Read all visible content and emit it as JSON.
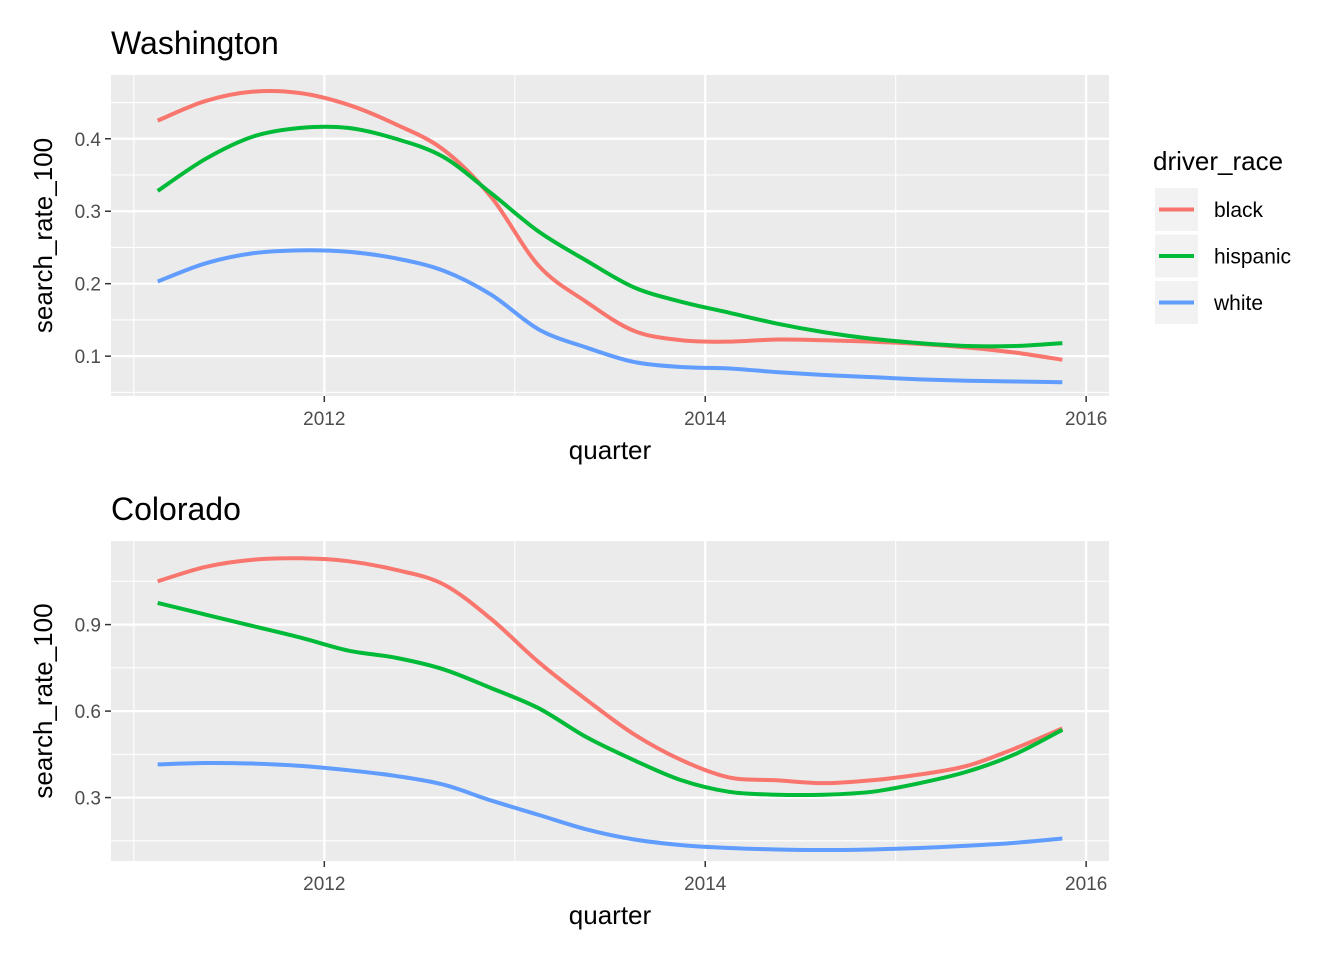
{
  "legend": {
    "title": "driver_race",
    "items": [
      {
        "label": "black",
        "color": "#F8766D"
      },
      {
        "label": "hispanic",
        "color": "#00BA38"
      },
      {
        "label": "white",
        "color": "#619CFF"
      }
    ]
  },
  "colors": {
    "panel_background": "#EBEBEB",
    "grid_major": "#FFFFFF",
    "black": "#F8766D",
    "hispanic": "#00BA38",
    "white": "#619CFF"
  },
  "chart_data": [
    {
      "type": "line",
      "title": "Washington",
      "xlabel": "quarter",
      "ylabel": "search_rate_100",
      "xlim": [
        2010.88,
        2016.12
      ],
      "ylim": [
        0.045,
        0.488
      ],
      "x_ticks": [
        2012,
        2014,
        2016
      ],
      "x_tick_labels": [
        "2012",
        "2014",
        "2016"
      ],
      "y_ticks": [
        0.1,
        0.2,
        0.3,
        0.4
      ],
      "y_tick_labels": [
        "0.1",
        "0.2",
        "0.3",
        "0.4"
      ],
      "grid": true,
      "legend_position": "right",
      "series": [
        {
          "name": "black",
          "color": "#F8766D",
          "x": [
            2011.125,
            2011.375,
            2011.625,
            2011.875,
            2012.125,
            2012.375,
            2012.625,
            2012.875,
            2013.125,
            2013.375,
            2013.625,
            2013.875,
            2014.125,
            2014.375,
            2014.625,
            2014.875,
            2015.125,
            2015.375,
            2015.625,
            2015.875
          ],
          "y": [
            0.425,
            0.452,
            0.465,
            0.463,
            0.447,
            0.42,
            0.385,
            0.32,
            0.225,
            0.175,
            0.135,
            0.122,
            0.12,
            0.123,
            0.122,
            0.12,
            0.117,
            0.112,
            0.105,
            0.095
          ]
        },
        {
          "name": "hispanic",
          "color": "#00BA38",
          "x": [
            2011.125,
            2011.375,
            2011.625,
            2011.875,
            2012.125,
            2012.375,
            2012.625,
            2012.875,
            2013.125,
            2013.375,
            2013.625,
            2013.875,
            2014.125,
            2014.375,
            2014.625,
            2014.875,
            2015.125,
            2015.375,
            2015.625,
            2015.875
          ],
          "y": [
            0.328,
            0.372,
            0.403,
            0.415,
            0.415,
            0.4,
            0.375,
            0.325,
            0.272,
            0.232,
            0.195,
            0.175,
            0.16,
            0.145,
            0.133,
            0.124,
            0.118,
            0.114,
            0.114,
            0.118
          ]
        },
        {
          "name": "white",
          "color": "#619CFF",
          "x": [
            2011.125,
            2011.375,
            2011.625,
            2011.875,
            2012.125,
            2012.375,
            2012.625,
            2012.875,
            2013.125,
            2013.375,
            2013.625,
            2013.875,
            2014.125,
            2014.375,
            2014.625,
            2014.875,
            2015.125,
            2015.375,
            2015.625,
            2015.875
          ],
          "y": [
            0.203,
            0.228,
            0.242,
            0.246,
            0.244,
            0.235,
            0.218,
            0.185,
            0.137,
            0.112,
            0.092,
            0.085,
            0.083,
            0.078,
            0.074,
            0.071,
            0.068,
            0.066,
            0.065,
            0.064
          ]
        }
      ]
    },
    {
      "type": "line",
      "title": "Colorado",
      "xlabel": "quarter",
      "ylabel": "search_rate_100",
      "xlim": [
        2010.88,
        2016.12
      ],
      "ylim": [
        0.08,
        1.19
      ],
      "x_ticks": [
        2012,
        2014,
        2016
      ],
      "x_tick_labels": [
        "2012",
        "2014",
        "2016"
      ],
      "y_ticks": [
        0.3,
        0.6,
        0.9
      ],
      "y_tick_labels": [
        "0.3",
        "0.6",
        "0.9"
      ],
      "grid": true,
      "series": [
        {
          "name": "black",
          "color": "#F8766D",
          "x": [
            2011.125,
            2011.375,
            2011.625,
            2011.875,
            2012.125,
            2012.375,
            2012.625,
            2012.875,
            2013.125,
            2013.375,
            2013.625,
            2013.875,
            2014.125,
            2014.375,
            2014.625,
            2014.875,
            2015.125,
            2015.375,
            2015.625,
            2015.875
          ],
          "y": [
            1.05,
            1.1,
            1.125,
            1.13,
            1.12,
            1.09,
            1.04,
            0.92,
            0.77,
            0.64,
            0.52,
            0.43,
            0.37,
            0.36,
            0.35,
            0.36,
            0.38,
            0.41,
            0.47,
            0.54
          ]
        },
        {
          "name": "hispanic",
          "color": "#00BA38",
          "x": [
            2011.125,
            2011.375,
            2011.625,
            2011.875,
            2012.125,
            2012.375,
            2012.625,
            2012.875,
            2013.125,
            2013.375,
            2013.625,
            2013.875,
            2014.125,
            2014.375,
            2014.625,
            2014.875,
            2015.125,
            2015.375,
            2015.625,
            2015.875
          ],
          "y": [
            0.975,
            0.935,
            0.895,
            0.855,
            0.81,
            0.785,
            0.745,
            0.68,
            0.61,
            0.51,
            0.43,
            0.36,
            0.32,
            0.31,
            0.31,
            0.32,
            0.35,
            0.39,
            0.45,
            0.535
          ]
        },
        {
          "name": "white",
          "color": "#619CFF",
          "x": [
            2011.125,
            2011.375,
            2011.625,
            2011.875,
            2012.125,
            2012.375,
            2012.625,
            2012.875,
            2013.125,
            2013.375,
            2013.625,
            2013.875,
            2014.125,
            2014.375,
            2014.625,
            2014.875,
            2015.125,
            2015.375,
            2015.625,
            2015.875
          ],
          "y": [
            0.415,
            0.42,
            0.418,
            0.41,
            0.395,
            0.375,
            0.345,
            0.29,
            0.24,
            0.19,
            0.155,
            0.135,
            0.125,
            0.12,
            0.118,
            0.12,
            0.125,
            0.133,
            0.143,
            0.158
          ]
        }
      ]
    }
  ]
}
